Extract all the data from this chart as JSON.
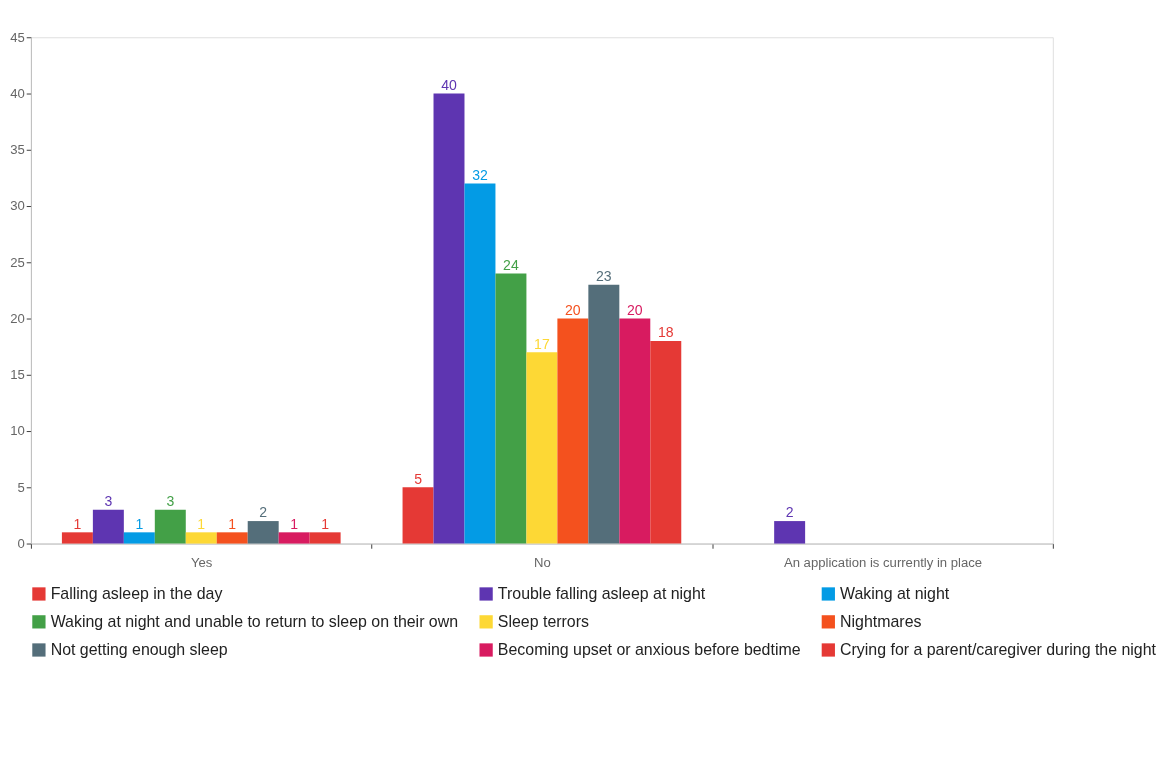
{
  "chart_data": {
    "type": "bar",
    "categories": [
      "Yes",
      "No",
      "An application is currently in place"
    ],
    "series": [
      {
        "name": "Falling asleep in the day",
        "color": "#e53935",
        "values": [
          1,
          5,
          null
        ]
      },
      {
        "name": "Trouble falling asleep at night",
        "color": "#5e35b1",
        "values": [
          3,
          40,
          2
        ]
      },
      {
        "name": "Waking at night",
        "color": "#039be5",
        "values": [
          1,
          32,
          null
        ]
      },
      {
        "name": "Waking at night and unable to return to sleep on their own",
        "color": "#43a047",
        "values": [
          3,
          24,
          null
        ]
      },
      {
        "name": "Sleep terrors",
        "color": "#fdd835",
        "values": [
          1,
          17,
          null
        ]
      },
      {
        "name": "Nightmares",
        "color": "#f4511e",
        "values": [
          1,
          20,
          null
        ]
      },
      {
        "name": "Not getting enough sleep",
        "color": "#546e7a",
        "values": [
          2,
          23,
          null
        ]
      },
      {
        "name": "Becoming upset or anxious before bedtime",
        "color": "#d81b60",
        "values": [
          1,
          20,
          null
        ]
      },
      {
        "name": "Crying for a parent/caregiver during the night",
        "color": "#e53935",
        "values": [
          1,
          18,
          null
        ]
      }
    ],
    "ylim": [
      0,
      45
    ],
    "yticks": [
      0,
      5,
      10,
      15,
      20,
      25,
      30,
      35,
      40,
      45
    ],
    "grid": false,
    "legend": "bottom",
    "data_labels": true
  }
}
